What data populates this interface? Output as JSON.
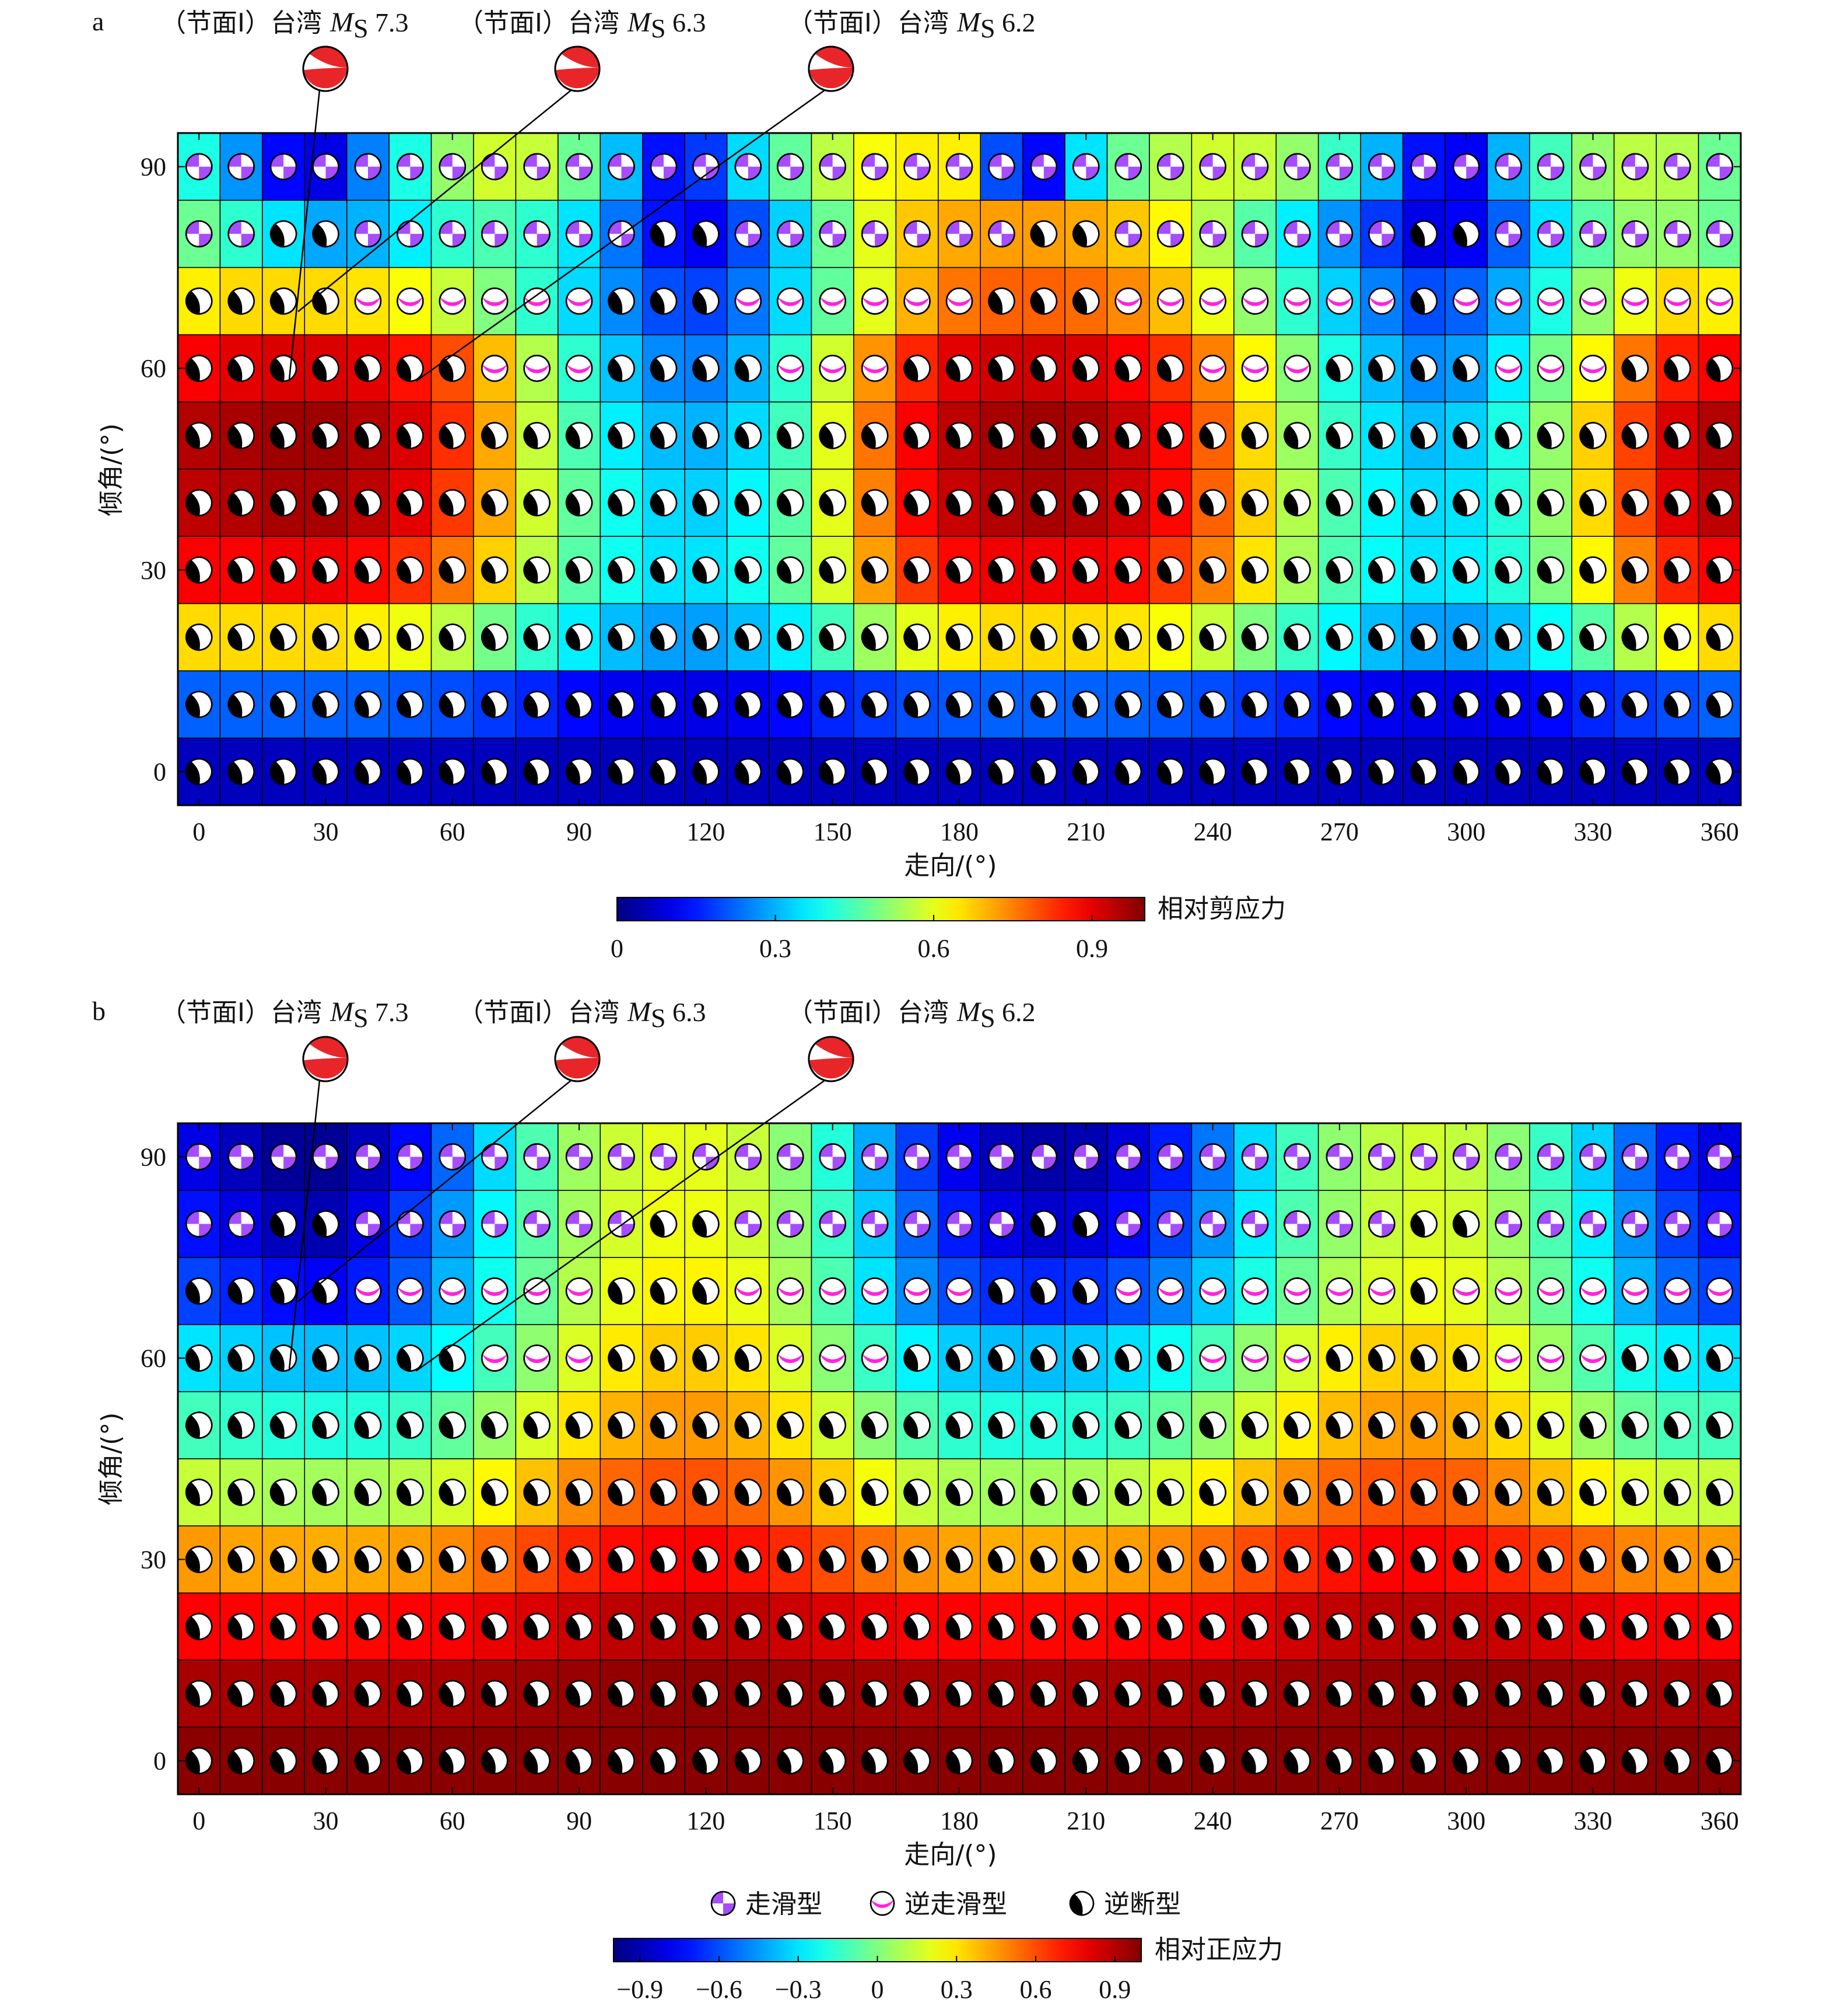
{
  "chart_data": [
    {
      "type": "heatmap",
      "panel": "a",
      "xlabel": "走向/(°)",
      "ylabel": "倾角/(°)",
      "xticks": [
        "0",
        "30",
        "60",
        "90",
        "120",
        "150",
        "180",
        "210",
        "240",
        "270",
        "300",
        "330",
        "360"
      ],
      "yticks": [
        "0",
        "30",
        "60",
        "90"
      ],
      "xlim": [
        0,
        360
      ],
      "ylim": [
        0,
        90
      ],
      "strike_values": [
        0,
        10,
        20,
        30,
        40,
        50,
        60,
        70,
        80,
        90,
        100,
        110,
        120,
        130,
        140,
        150,
        160,
        170,
        180,
        190,
        200,
        210,
        220,
        230,
        240,
        250,
        260,
        270,
        280,
        290,
        300,
        310,
        320,
        330,
        340,
        350,
        360
      ],
      "dip_values": [
        0,
        10,
        20,
        30,
        40,
        50,
        60,
        70,
        80,
        90
      ],
      "colorbar": {
        "label": "相对剪应力",
        "range": [
          0,
          1
        ],
        "ticks": [
          "0",
          "0.3",
          "0.6",
          "0.9"
        ]
      },
      "values": [
        [
          0.06,
          0.06,
          0.06,
          0.06,
          0.06,
          0.06,
          0.06,
          0.06,
          0.06,
          0.06,
          0.06,
          0.06,
          0.06,
          0.06,
          0.06,
          0.06,
          0.06,
          0.06,
          0.06,
          0.06,
          0.06,
          0.06,
          0.06,
          0.06,
          0.06,
          0.06,
          0.06,
          0.06,
          0.06,
          0.06,
          0.06,
          0.06,
          0.06,
          0.06,
          0.06,
          0.06,
          0.06
        ],
        [
          0.22,
          0.22,
          0.22,
          0.22,
          0.22,
          0.21,
          0.2,
          0.18,
          0.16,
          0.13,
          0.11,
          0.1,
          0.1,
          0.11,
          0.13,
          0.16,
          0.18,
          0.2,
          0.21,
          0.22,
          0.22,
          0.22,
          0.22,
          0.21,
          0.2,
          0.18,
          0.16,
          0.13,
          0.11,
          0.1,
          0.1,
          0.11,
          0.13,
          0.16,
          0.18,
          0.2,
          0.22
        ],
        [
          0.66,
          0.66,
          0.66,
          0.66,
          0.64,
          0.61,
          0.56,
          0.49,
          0.42,
          0.36,
          0.31,
          0.28,
          0.28,
          0.31,
          0.36,
          0.44,
          0.53,
          0.6,
          0.64,
          0.66,
          0.66,
          0.66,
          0.65,
          0.62,
          0.57,
          0.5,
          0.43,
          0.37,
          0.31,
          0.28,
          0.28,
          0.31,
          0.38,
          0.46,
          0.55,
          0.62,
          0.66
        ],
        [
          0.88,
          0.88,
          0.89,
          0.89,
          0.87,
          0.83,
          0.76,
          0.67,
          0.56,
          0.46,
          0.39,
          0.35,
          0.35,
          0.39,
          0.47,
          0.59,
          0.72,
          0.82,
          0.87,
          0.89,
          0.89,
          0.89,
          0.87,
          0.82,
          0.75,
          0.65,
          0.54,
          0.45,
          0.38,
          0.35,
          0.36,
          0.41,
          0.5,
          0.63,
          0.75,
          0.84,
          0.88
        ],
        [
          0.94,
          0.95,
          0.96,
          0.96,
          0.94,
          0.9,
          0.82,
          0.71,
          0.58,
          0.47,
          0.39,
          0.34,
          0.33,
          0.37,
          0.46,
          0.6,
          0.75,
          0.87,
          0.93,
          0.95,
          0.96,
          0.95,
          0.92,
          0.87,
          0.78,
          0.67,
          0.55,
          0.45,
          0.37,
          0.34,
          0.35,
          0.41,
          0.52,
          0.66,
          0.8,
          0.9,
          0.94
        ],
        [
          0.95,
          0.96,
          0.97,
          0.97,
          0.95,
          0.91,
          0.83,
          0.71,
          0.57,
          0.45,
          0.36,
          0.31,
          0.3,
          0.34,
          0.44,
          0.6,
          0.76,
          0.88,
          0.94,
          0.96,
          0.97,
          0.96,
          0.93,
          0.87,
          0.78,
          0.66,
          0.53,
          0.43,
          0.35,
          0.31,
          0.33,
          0.4,
          0.52,
          0.67,
          0.81,
          0.91,
          0.95
        ],
        [
          0.88,
          0.9,
          0.91,
          0.91,
          0.9,
          0.86,
          0.8,
          0.69,
          0.55,
          0.42,
          0.32,
          0.26,
          0.25,
          0.3,
          0.42,
          0.58,
          0.73,
          0.84,
          0.9,
          0.92,
          0.92,
          0.91,
          0.88,
          0.83,
          0.75,
          0.63,
          0.51,
          0.4,
          0.31,
          0.26,
          0.28,
          0.36,
          0.49,
          0.63,
          0.76,
          0.85,
          0.88
        ],
        [
          0.64,
          0.66,
          0.66,
          0.66,
          0.65,
          0.62,
          0.57,
          0.5,
          0.42,
          0.34,
          0.26,
          0.2,
          0.19,
          0.24,
          0.34,
          0.47,
          0.6,
          0.7,
          0.76,
          0.78,
          0.78,
          0.77,
          0.74,
          0.69,
          0.61,
          0.52,
          0.42,
          0.33,
          0.25,
          0.2,
          0.22,
          0.29,
          0.4,
          0.52,
          0.61,
          0.66,
          0.64
        ],
        [
          0.48,
          0.42,
          0.35,
          0.29,
          0.3,
          0.36,
          0.42,
          0.45,
          0.42,
          0.35,
          0.24,
          0.14,
          0.12,
          0.2,
          0.33,
          0.48,
          0.6,
          0.68,
          0.71,
          0.72,
          0.72,
          0.71,
          0.68,
          0.63,
          0.55,
          0.46,
          0.36,
          0.27,
          0.18,
          0.1,
          0.12,
          0.22,
          0.35,
          0.46,
          0.52,
          0.52,
          0.48
        ],
        [
          0.4,
          0.27,
          0.13,
          0.1,
          0.25,
          0.4,
          0.52,
          0.58,
          0.57,
          0.48,
          0.31,
          0.14,
          0.18,
          0.34,
          0.47,
          0.56,
          0.62,
          0.64,
          0.64,
          0.2,
          0.13,
          0.35,
          0.48,
          0.55,
          0.58,
          0.57,
          0.52,
          0.43,
          0.3,
          0.14,
          0.12,
          0.3,
          0.44,
          0.52,
          0.56,
          0.55,
          0.48
        ]
      ]
    },
    {
      "type": "heatmap",
      "panel": "b",
      "xlabel": "走向/(°)",
      "ylabel": "倾角/(°)",
      "xticks": [
        "0",
        "30",
        "60",
        "90",
        "120",
        "150",
        "180",
        "210",
        "240",
        "270",
        "300",
        "330",
        "360"
      ],
      "yticks": [
        "0",
        "30",
        "60",
        "90"
      ],
      "xlim": [
        0,
        360
      ],
      "ylim": [
        0,
        90
      ],
      "strike_values": [
        0,
        10,
        20,
        30,
        40,
        50,
        60,
        70,
        80,
        90,
        100,
        110,
        120,
        130,
        140,
        150,
        160,
        170,
        180,
        190,
        200,
        210,
        220,
        230,
        240,
        250,
        260,
        270,
        280,
        290,
        300,
        310,
        320,
        330,
        340,
        350,
        360
      ],
      "dip_values": [
        0,
        10,
        20,
        30,
        40,
        50,
        60,
        70,
        80,
        90
      ],
      "colorbar": {
        "label": "相对正应力",
        "range": [
          -1,
          1
        ],
        "ticks": [
          "−0.9",
          "−0.6",
          "−0.3",
          "0",
          "0.3",
          "0.6",
          "0.9"
        ]
      },
      "values": [
        [
          0.98,
          0.98,
          0.98,
          0.98,
          0.98,
          0.98,
          0.98,
          0.98,
          0.98,
          0.98,
          0.98,
          0.98,
          0.98,
          0.98,
          0.98,
          0.98,
          0.98,
          0.98,
          0.98,
          0.98,
          0.98,
          0.98,
          0.98,
          0.98,
          0.98,
          0.98,
          0.98,
          0.98,
          0.98,
          0.98,
          0.98,
          0.98,
          0.98,
          0.98,
          0.98,
          0.98,
          0.98
        ],
        [
          0.92,
          0.92,
          0.92,
          0.92,
          0.92,
          0.92,
          0.92,
          0.93,
          0.94,
          0.95,
          0.96,
          0.97,
          0.97,
          0.96,
          0.95,
          0.94,
          0.93,
          0.92,
          0.92,
          0.92,
          0.92,
          0.92,
          0.92,
          0.92,
          0.92,
          0.93,
          0.94,
          0.95,
          0.96,
          0.97,
          0.97,
          0.96,
          0.95,
          0.94,
          0.93,
          0.92,
          0.92
        ],
        [
          0.75,
          0.75,
          0.74,
          0.74,
          0.74,
          0.75,
          0.76,
          0.79,
          0.82,
          0.85,
          0.88,
          0.89,
          0.89,
          0.88,
          0.85,
          0.82,
          0.79,
          0.76,
          0.75,
          0.74,
          0.74,
          0.74,
          0.75,
          0.76,
          0.78,
          0.81,
          0.84,
          0.87,
          0.89,
          0.89,
          0.88,
          0.86,
          0.83,
          0.8,
          0.77,
          0.76,
          0.75
        ],
        [
          0.45,
          0.43,
          0.42,
          0.41,
          0.42,
          0.44,
          0.48,
          0.54,
          0.61,
          0.68,
          0.73,
          0.75,
          0.75,
          0.72,
          0.67,
          0.6,
          0.53,
          0.47,
          0.43,
          0.41,
          0.41,
          0.42,
          0.44,
          0.48,
          0.53,
          0.6,
          0.67,
          0.72,
          0.75,
          0.75,
          0.73,
          0.68,
          0.62,
          0.55,
          0.49,
          0.46,
          0.45
        ],
        [
          0.14,
          0.11,
          0.08,
          0.07,
          0.08,
          0.11,
          0.17,
          0.26,
          0.37,
          0.48,
          0.55,
          0.59,
          0.59,
          0.55,
          0.46,
          0.35,
          0.23,
          0.14,
          0.09,
          0.07,
          0.07,
          0.08,
          0.12,
          0.18,
          0.27,
          0.37,
          0.47,
          0.55,
          0.59,
          0.59,
          0.56,
          0.48,
          0.38,
          0.27,
          0.19,
          0.15,
          0.14
        ],
        [
          -0.12,
          -0.15,
          -0.18,
          -0.19,
          -0.18,
          -0.14,
          -0.06,
          0.05,
          0.18,
          0.3,
          0.4,
          0.45,
          0.45,
          0.4,
          0.3,
          0.16,
          0.02,
          -0.09,
          -0.16,
          -0.19,
          -0.19,
          -0.17,
          -0.13,
          -0.06,
          0.04,
          0.16,
          0.28,
          0.38,
          0.44,
          0.45,
          0.41,
          0.32,
          0.19,
          0.06,
          -0.05,
          -0.11,
          -0.12
        ],
        [
          -0.3,
          -0.34,
          -0.37,
          -0.38,
          -0.37,
          -0.33,
          -0.25,
          -0.12,
          0.03,
          0.18,
          0.29,
          0.35,
          0.35,
          0.3,
          0.18,
          0.02,
          -0.14,
          -0.27,
          -0.35,
          -0.38,
          -0.38,
          -0.36,
          -0.31,
          -0.23,
          -0.11,
          0.03,
          0.17,
          0.28,
          0.34,
          0.35,
          0.31,
          0.21,
          0.06,
          -0.09,
          -0.21,
          -0.28,
          -0.3
        ],
        [
          -0.62,
          -0.68,
          -0.73,
          -0.76,
          -0.7,
          -0.58,
          -0.4,
          -0.22,
          -0.05,
          0.1,
          0.21,
          0.27,
          0.27,
          0.21,
          0.08,
          -0.1,
          -0.3,
          -0.48,
          -0.6,
          -0.66,
          -0.68,
          -0.66,
          -0.6,
          -0.5,
          -0.36,
          -0.2,
          -0.04,
          0.09,
          0.18,
          0.22,
          0.2,
          0.1,
          -0.05,
          -0.22,
          -0.4,
          -0.55,
          -0.62
        ],
        [
          -0.72,
          -0.8,
          -0.88,
          -0.9,
          -0.8,
          -0.64,
          -0.45,
          -0.26,
          -0.08,
          0.07,
          0.17,
          0.22,
          0.22,
          0.16,
          0.04,
          -0.14,
          -0.35,
          -0.55,
          -0.7,
          -0.8,
          -0.85,
          -0.82,
          -0.74,
          -0.62,
          -0.46,
          -0.28,
          -0.1,
          0.04,
          0.14,
          0.18,
          0.16,
          0.06,
          -0.1,
          -0.28,
          -0.46,
          -0.62,
          -0.72
        ],
        [
          -0.8,
          -0.88,
          -0.95,
          -0.96,
          -0.88,
          -0.74,
          -0.55,
          -0.32,
          -0.1,
          0.06,
          0.15,
          0.2,
          0.2,
          0.14,
          0.02,
          -0.18,
          -0.42,
          -0.63,
          -0.78,
          -0.88,
          -0.92,
          -0.9,
          -0.82,
          -0.7,
          -0.52,
          -0.32,
          -0.12,
          0.03,
          0.12,
          0.16,
          0.13,
          0.02,
          -0.14,
          -0.34,
          -0.54,
          -0.7,
          -0.8
        ]
      ]
    }
  ],
  "panels": [
    {
      "letter": "a",
      "annotations": [
        {
          "prefix": "（节面Ⅰ）台湾 ",
          "mag_symbol": "M",
          "mag_sub": "S",
          "mag_value": " 7.3"
        },
        {
          "prefix": "（节面Ⅰ）台湾 ",
          "mag_symbol": "M",
          "mag_sub": "S",
          "mag_value": " 6.3"
        },
        {
          "prefix": "（节面Ⅰ）台湾 ",
          "mag_symbol": "M",
          "mag_sub": "S",
          "mag_value": " 6.2"
        }
      ]
    },
    {
      "letter": "b",
      "annotations": [
        {
          "prefix": "（节面Ⅰ）台湾 ",
          "mag_symbol": "M",
          "mag_sub": "S",
          "mag_value": " 7.3"
        },
        {
          "prefix": "（节面Ⅰ）台湾 ",
          "mag_symbol": "M",
          "mag_sub": "S",
          "mag_value": " 6.3"
        },
        {
          "prefix": "（节面Ⅰ）台湾 ",
          "mag_symbol": "M",
          "mag_sub": "S",
          "mag_value": " 6.2"
        }
      ]
    }
  ],
  "legend": [
    {
      "label": "走滑型",
      "icon": "strike-slip-beachball-icon"
    },
    {
      "label": "逆走滑型",
      "icon": "reverse-strike-slip-beachball-icon"
    },
    {
      "label": "逆断型",
      "icon": "thrust-beachball-icon"
    }
  ],
  "colors": {
    "strike_slip": "#a64dff",
    "reverse_strike_slip": "#ff22dd",
    "thrust": "#000000",
    "event_marker": "#e8262a"
  }
}
